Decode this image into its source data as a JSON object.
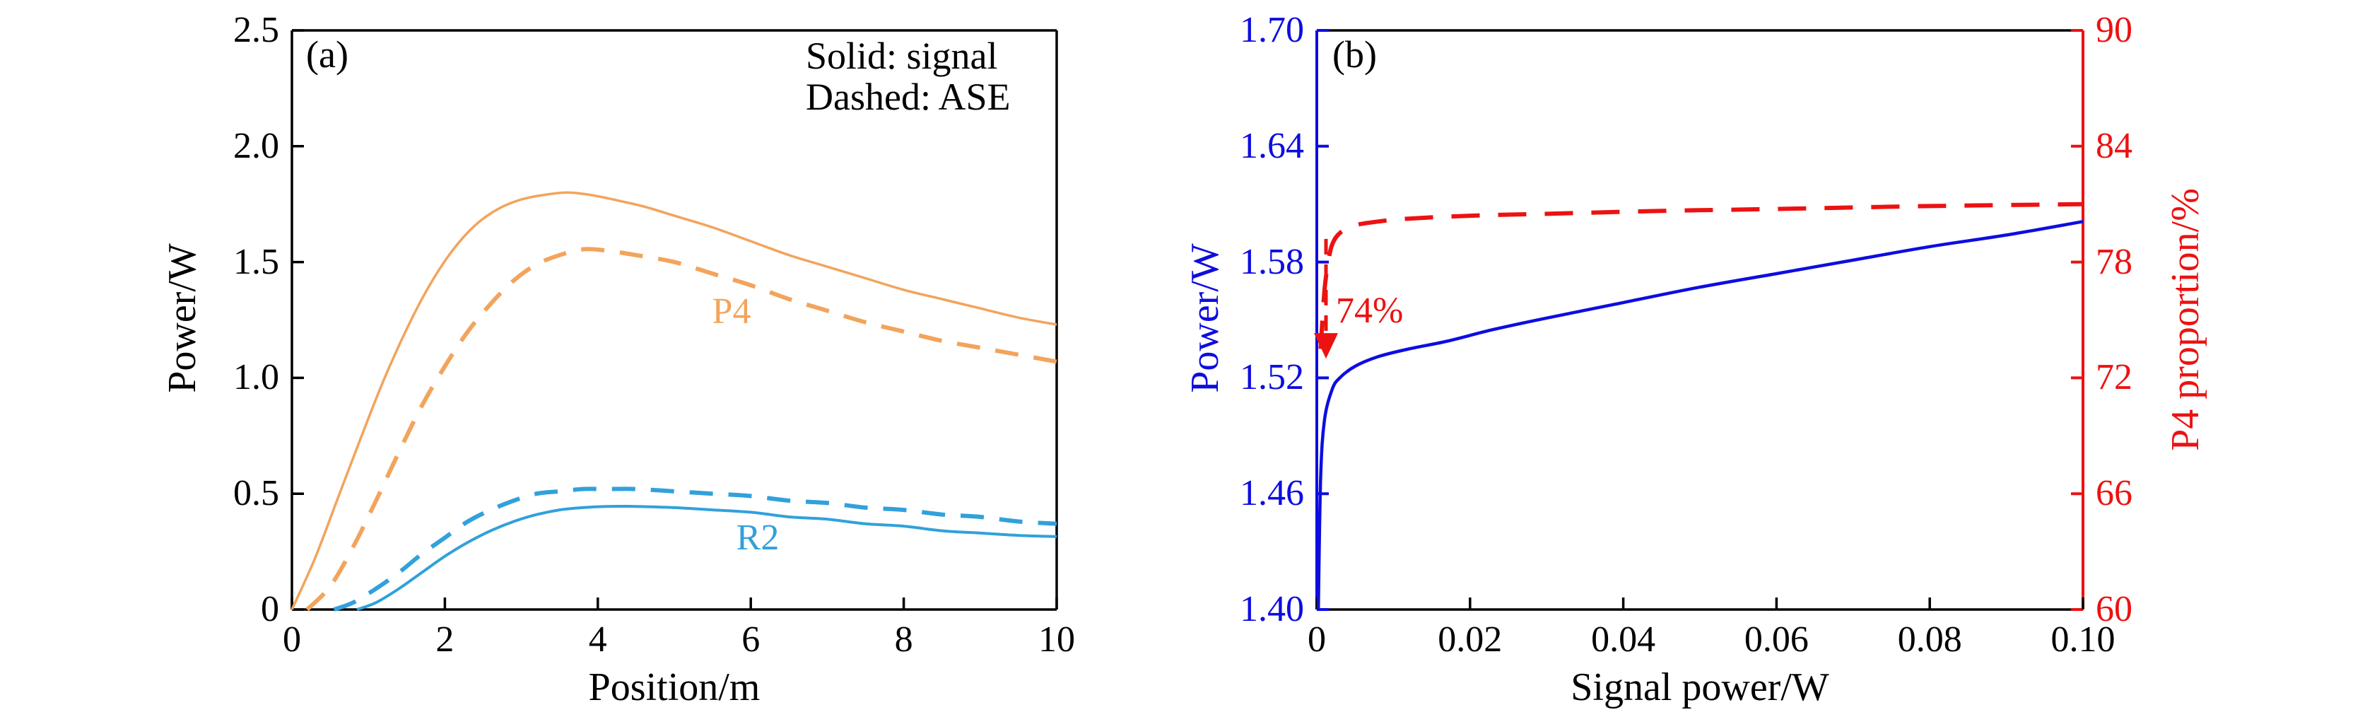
{
  "panel_a": {
    "label": "(a)",
    "legend": {
      "line1": "Solid: signal",
      "line2": "Dashed: ASE"
    },
    "xlabel": "Position/m",
    "ylabel": "Power/W",
    "curve_labels": {
      "p4": "P4",
      "r2": "R2"
    },
    "xticks": [
      "0",
      "2",
      "4",
      "6",
      "8",
      "10"
    ],
    "yticks": [
      "0",
      "0.5",
      "1.0",
      "1.5",
      "2.0",
      "2.5"
    ]
  },
  "panel_b": {
    "label": "(b)",
    "xlabel": "Signal power/W",
    "ylabel_left": "Power/W",
    "ylabel_right": "P4 proportion/%",
    "annotation": "74%",
    "xticks": [
      "0",
      "0.02",
      "0.04",
      "0.06",
      "0.08",
      "0.10"
    ],
    "yticks_left": [
      "1.40",
      "1.46",
      "1.52",
      "1.58",
      "1.64",
      "1.70"
    ],
    "yticks_right": [
      "60",
      "66",
      "72",
      "78",
      "84",
      "90"
    ]
  },
  "colors": {
    "orange": "#F2A45C",
    "cyan": "#31A1DB",
    "blue": "#0D0DE0",
    "red": "#EC1212",
    "black": "#000000"
  },
  "chart_data": [
    {
      "panel": "a",
      "type": "line",
      "title": "",
      "xlabel": "Position/m",
      "ylabel": "Power/W",
      "xlim": [
        0,
        10
      ],
      "ylim": [
        0,
        2.5
      ],
      "xtick_values": [
        0,
        2,
        4,
        6,
        8,
        10
      ],
      "ytick_values": [
        0,
        0.5,
        1.0,
        1.5,
        2.0,
        2.5
      ],
      "grid": false,
      "legend_note": [
        "Solid: signal",
        "Dashed: ASE"
      ],
      "series": [
        {
          "name": "P4 signal",
          "color_key": "orange",
          "dash": "solid",
          "width": 3.5,
          "x": [
            0,
            0.3,
            0.6,
            0.9,
            1.2,
            1.5,
            1.8,
            2.1,
            2.4,
            2.7,
            3.0,
            3.3,
            3.6,
            3.9,
            4.2,
            4.6,
            5.0,
            5.5,
            6.0,
            6.5,
            7.0,
            7.5,
            8.0,
            8.5,
            9.0,
            9.5,
            10.0
          ],
          "y": [
            0,
            0.22,
            0.48,
            0.74,
            0.99,
            1.21,
            1.4,
            1.55,
            1.66,
            1.73,
            1.77,
            1.79,
            1.8,
            1.79,
            1.77,
            1.74,
            1.7,
            1.65,
            1.59,
            1.53,
            1.48,
            1.43,
            1.38,
            1.34,
            1.3,
            1.26,
            1.23
          ]
        },
        {
          "name": "P4 ASE",
          "color_key": "orange",
          "dash": "dashed",
          "width": 6,
          "x": [
            0.2,
            0.5,
            0.8,
            1.1,
            1.4,
            1.7,
            2.0,
            2.3,
            2.6,
            2.9,
            3.2,
            3.5,
            3.8,
            4.1,
            4.5,
            5.0,
            5.5,
            6.0,
            6.5,
            7.0,
            7.5,
            8.0,
            8.5,
            9.0,
            9.5,
            10.0
          ],
          "y": [
            0,
            0.1,
            0.27,
            0.47,
            0.68,
            0.88,
            1.05,
            1.2,
            1.32,
            1.42,
            1.49,
            1.53,
            1.555,
            1.55,
            1.53,
            1.5,
            1.45,
            1.4,
            1.34,
            1.29,
            1.24,
            1.2,
            1.16,
            1.13,
            1.1,
            1.07
          ]
        },
        {
          "name": "R2 ASE",
          "color_key": "cyan",
          "dash": "dashed",
          "width": 6,
          "x": [
            0.55,
            0.8,
            1.1,
            1.4,
            1.7,
            2.0,
            2.3,
            2.6,
            2.9,
            3.2,
            3.5,
            3.8,
            4.1,
            4.5,
            5.0,
            5.5,
            6.0,
            6.5,
            7.0,
            7.5,
            8.0,
            8.5,
            9.0,
            9.5,
            10.0
          ],
          "y": [
            0,
            0.03,
            0.09,
            0.16,
            0.24,
            0.31,
            0.38,
            0.43,
            0.47,
            0.5,
            0.51,
            0.52,
            0.52,
            0.52,
            0.51,
            0.5,
            0.49,
            0.47,
            0.46,
            0.44,
            0.43,
            0.41,
            0.4,
            0.38,
            0.37
          ]
        },
        {
          "name": "R2 signal",
          "color_key": "cyan",
          "dash": "solid",
          "width": 4,
          "x": [
            0.85,
            1.1,
            1.4,
            1.7,
            2.0,
            2.3,
            2.6,
            2.9,
            3.2,
            3.5,
            3.8,
            4.1,
            4.5,
            5.0,
            5.5,
            6.0,
            6.5,
            7.0,
            7.5,
            8.0,
            8.5,
            9.0,
            9.5,
            10.0
          ],
          "y": [
            0,
            0.03,
            0.09,
            0.16,
            0.23,
            0.29,
            0.34,
            0.38,
            0.41,
            0.43,
            0.44,
            0.445,
            0.445,
            0.44,
            0.43,
            0.42,
            0.4,
            0.39,
            0.37,
            0.36,
            0.34,
            0.33,
            0.32,
            0.315
          ]
        }
      ]
    },
    {
      "panel": "b",
      "type": "line",
      "title": "",
      "xlabel": "Signal power/W",
      "ylabel_left": "Power/W",
      "ylabel_right": "P4 proportion/%",
      "xlim": [
        0,
        0.1
      ],
      "ylim_left": [
        1.4,
        1.7
      ],
      "ylim_right": [
        60,
        90
      ],
      "xtick_values": [
        0,
        0.02,
        0.04,
        0.06,
        0.08,
        0.1
      ],
      "ytick_values_left": [
        1.4,
        1.46,
        1.52,
        1.58,
        1.64,
        1.7
      ],
      "ytick_values_right": [
        60,
        66,
        72,
        78,
        84,
        90
      ],
      "grid": false,
      "series": [
        {
          "name": "Signal output power",
          "axis": "left",
          "color_key": "blue",
          "dash": "solid",
          "width": 4.5,
          "x": [
            0.0002,
            0.0005,
            0.001,
            0.002,
            0.003,
            0.005,
            0.008,
            0.012,
            0.017,
            0.023,
            0.03,
            0.04,
            0.05,
            0.06,
            0.07,
            0.08,
            0.09,
            0.1
          ],
          "y": [
            1.4,
            1.468,
            1.498,
            1.514,
            1.52,
            1.526,
            1.531,
            1.535,
            1.539,
            1.545,
            1.551,
            1.559,
            1.567,
            1.574,
            1.581,
            1.588,
            1.594,
            1.601
          ]
        },
        {
          "name": "P4 proportion",
          "axis": "right",
          "color_key": "red",
          "dash": "dashed",
          "width": 6,
          "x": [
            0.0005,
            0.001,
            0.0015,
            0.002,
            0.003,
            0.005,
            0.008,
            0.012,
            0.02,
            0.03,
            0.045,
            0.06,
            0.08,
            0.1
          ],
          "y": [
            73.5,
            76.5,
            78.0,
            78.9,
            79.5,
            79.9,
            80.1,
            80.25,
            80.4,
            80.5,
            80.65,
            80.75,
            80.9,
            81.0
          ]
        }
      ],
      "annotation": {
        "text": "74%",
        "x": 0.0012,
        "leader_top_right_value": 79.2,
        "arrow_tip_right_value": 73.0
      }
    }
  ]
}
